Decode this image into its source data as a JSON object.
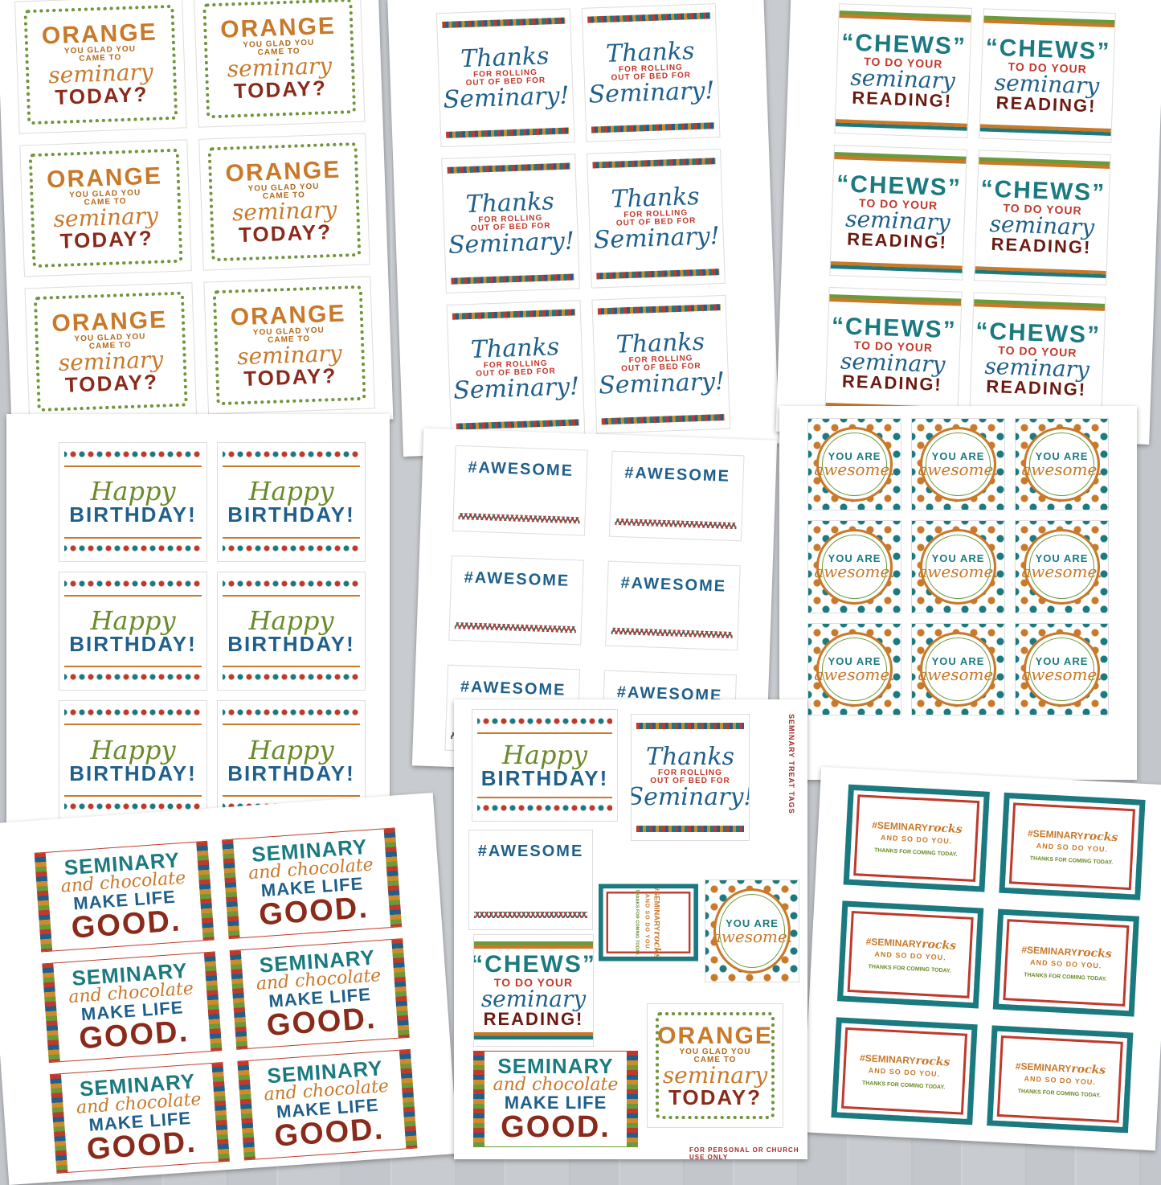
{
  "tags": {
    "orange": {
      "line1": "ORANGE",
      "line2": "YOU GLAD YOU",
      "line3": "CAME TO",
      "line4": "seminary",
      "line5": "TODAY?"
    },
    "thanks": {
      "line1": "Thanks",
      "line2": "FOR ROLLING",
      "line3": "OUT OF BED FOR",
      "line4": "Seminary!"
    },
    "chews": {
      "line1": "“CHEWS”",
      "line2": "TO DO YOUR",
      "line3": "seminary",
      "line4": "READING!"
    },
    "birthday": {
      "line1": "Happy",
      "line2": "BIRTHDAY!"
    },
    "hashtag": {
      "line1": "#AWESOME"
    },
    "circle": {
      "line1": "YOU ARE",
      "line2": "awesome."
    },
    "chocolate": {
      "line1": "SEMINARY",
      "line2": "and chocolate",
      "line3": "MAKE LIFE",
      "line4": "GOOD."
    },
    "rocks": {
      "line1": "#SEMINARY",
      "line1_script": "rocks",
      "line2": "AND SO DO YOU.",
      "line3": "THANKS FOR COMING TODAY."
    }
  },
  "sampler": {
    "side_title": "SEMINARY TREAT TAGS",
    "footer": "FOR PERSONAL OR CHURCH USE ONLY"
  },
  "colors": {
    "orange": "#c8792a",
    "teal": "#1b7a80",
    "blue": "#1f5f8b",
    "red": "#c0392b",
    "green": "#6a9a3a",
    "maroon": "#8a2a1a"
  }
}
